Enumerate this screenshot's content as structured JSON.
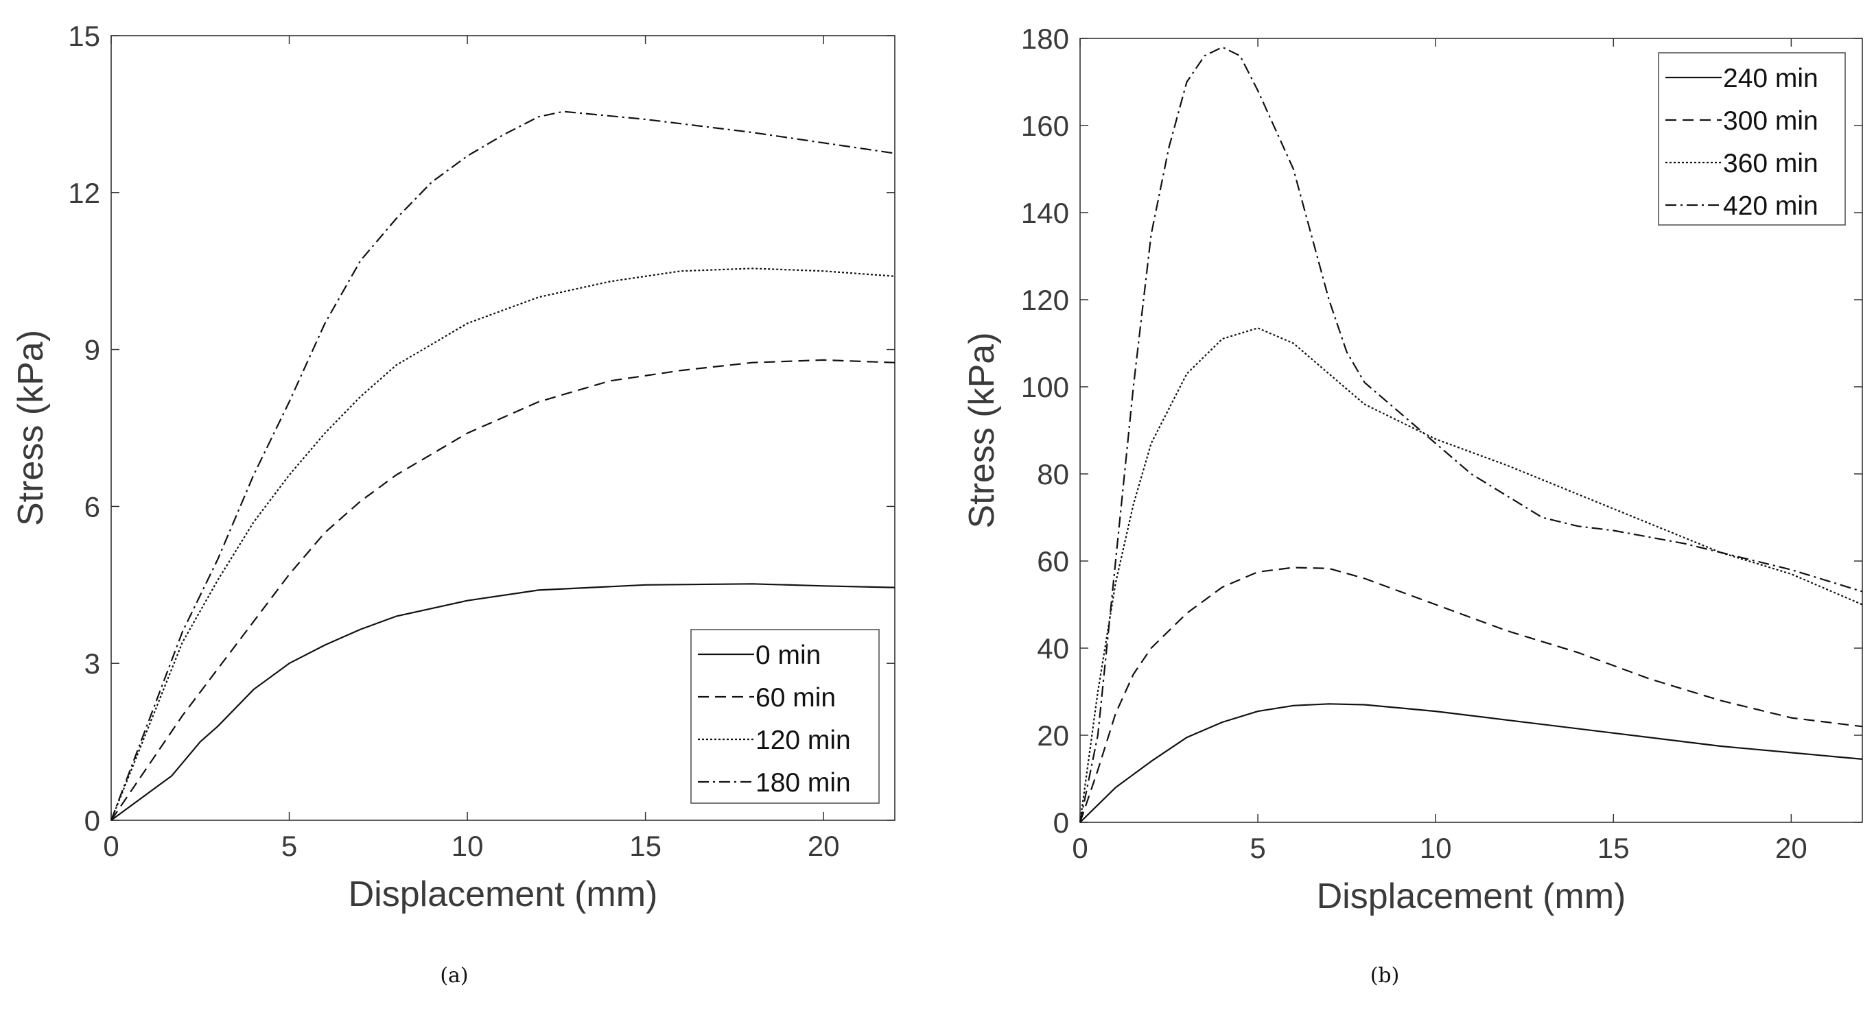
{
  "chart_data": [
    {
      "type": "line",
      "caption": "(a)",
      "xlabel": "Displacement (mm)",
      "ylabel": "Stress (kPa)",
      "xlim": [
        0,
        22
      ],
      "ylim": [
        0,
        15
      ],
      "xticks": [
        0,
        5,
        10,
        15,
        20
      ],
      "yticks": [
        0,
        3,
        6,
        9,
        12,
        15
      ],
      "grid": false,
      "legend_position": "bottom-right",
      "series": [
        {
          "name": "0 min",
          "style": "solid",
          "x": [
            0,
            1,
            1.7,
            2.5,
            3,
            4,
            5,
            6,
            7,
            8,
            10,
            12,
            15,
            18,
            20,
            22
          ],
          "y": [
            0,
            0.5,
            0.85,
            1.5,
            1.8,
            2.5,
            3.0,
            3.35,
            3.65,
            3.9,
            4.2,
            4.4,
            4.5,
            4.52,
            4.48,
            4.45
          ]
        },
        {
          "name": "60 min",
          "style": "dashed",
          "x": [
            0,
            1,
            2,
            3,
            4,
            5,
            6,
            7,
            8,
            10,
            12,
            14,
            16,
            18,
            20,
            22
          ],
          "y": [
            0,
            1,
            2,
            2.9,
            3.8,
            4.7,
            5.5,
            6.1,
            6.6,
            7.4,
            8.0,
            8.4,
            8.6,
            8.75,
            8.8,
            8.75
          ]
        },
        {
          "name": "120 min",
          "style": "dotted",
          "x": [
            0,
            1,
            2,
            3,
            4,
            5,
            6,
            7,
            8,
            10,
            12,
            14,
            16,
            18,
            20,
            22
          ],
          "y": [
            0,
            1.7,
            3.4,
            4.6,
            5.7,
            6.6,
            7.4,
            8.1,
            8.7,
            9.5,
            10.0,
            10.3,
            10.5,
            10.55,
            10.5,
            10.4
          ]
        },
        {
          "name": "180 min",
          "style": "dashdot",
          "x": [
            0,
            1,
            2,
            3,
            4,
            5,
            6,
            7,
            8,
            9,
            10,
            11,
            12,
            12.7,
            15,
            18,
            20,
            22
          ],
          "y": [
            0,
            1.8,
            3.6,
            5.0,
            6.6,
            8.0,
            9.5,
            10.7,
            11.5,
            12.2,
            12.7,
            13.1,
            13.45,
            13.55,
            13.4,
            13.15,
            12.95,
            12.75
          ]
        }
      ]
    },
    {
      "type": "line",
      "caption": "(b)",
      "xlabel": "Displacement (mm)",
      "ylabel": "Stress (kPa)",
      "xlim": [
        0,
        22
      ],
      "ylim": [
        0,
        180
      ],
      "xticks": [
        0,
        5,
        10,
        15,
        20
      ],
      "yticks": [
        0,
        20,
        40,
        60,
        80,
        100,
        120,
        140,
        160,
        180
      ],
      "grid": false,
      "legend_position": "top-right",
      "series": [
        {
          "name": "240 min",
          "style": "solid",
          "x": [
            0,
            1,
            2,
            3,
            4,
            5,
            6,
            7,
            8,
            10,
            12,
            15,
            18,
            20,
            22
          ],
          "y": [
            0,
            8,
            14,
            19.5,
            23,
            25.5,
            26.8,
            27.2,
            27,
            25.5,
            23.5,
            20.5,
            17.5,
            16,
            14.5
          ]
        },
        {
          "name": "300 min",
          "style": "dashed",
          "x": [
            0,
            0.5,
            1,
            1.5,
            2,
            3,
            4,
            5,
            6,
            7,
            8,
            10,
            12,
            14,
            16,
            18,
            20,
            22
          ],
          "y": [
            0,
            12,
            25,
            34,
            40,
            48,
            54,
            57.5,
            58.5,
            58.3,
            56,
            50,
            44,
            39,
            33,
            28,
            24,
            22
          ]
        },
        {
          "name": "360 min",
          "style": "dotted",
          "x": [
            0,
            0.5,
            1,
            1.5,
            2,
            3,
            4,
            5,
            6,
            7,
            8,
            10,
            12,
            15,
            18,
            20,
            22
          ],
          "y": [
            0,
            30,
            55,
            73,
            87,
            103,
            111,
            113.5,
            110,
            103,
            96,
            88,
            82,
            72,
            62,
            57,
            50
          ]
        },
        {
          "name": "420 min",
          "style": "dashdot",
          "x": [
            0,
            0.5,
            1,
            1.5,
            2,
            2.5,
            3,
            3.5,
            4,
            4.5,
            5,
            6,
            7,
            7.5,
            8,
            9,
            10,
            11,
            12,
            13,
            14,
            15,
            17,
            20,
            22
          ],
          "y": [
            0,
            20,
            60,
            100,
            135,
            155,
            170,
            176,
            178,
            176,
            168,
            150,
            120,
            108,
            101,
            94,
            87,
            80,
            75,
            70,
            68,
            67,
            64,
            58,
            53
          ]
        }
      ]
    }
  ]
}
